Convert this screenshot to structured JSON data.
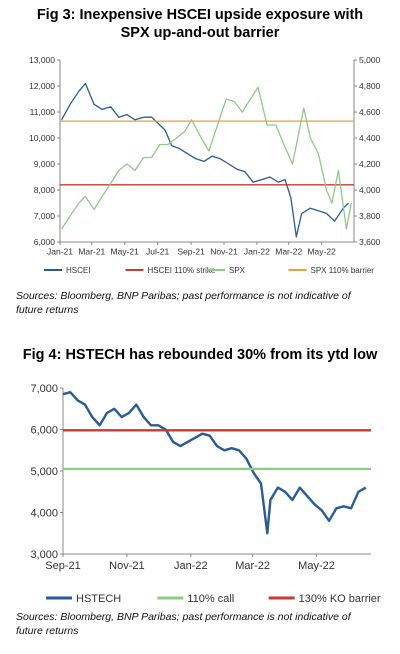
{
  "figures": [
    {
      "title_line1": "Fig 3: Inexpensive HSCEI upside exposure with",
      "title_line2": "SPX up-and-out barrier",
      "source_line1": "Sources: Bloomberg, BNP Paribas; past performance is not indicative of",
      "source_line2": "future returns"
    },
    {
      "title_line1": "Fig 4: HSTECH has rebounded 30% from its ytd low",
      "source_line1": "Sources: Bloomberg, BNP Paribas; past performance is not indicative of",
      "source_line2": "future returns"
    }
  ],
  "chart_data": [
    {
      "type": "line",
      "title": "Fig 3: Inexpensive HSCEI upside exposure with SPX up-and-out barrier",
      "x_axis": {
        "type": "date",
        "range": [
          "2021-01-01",
          "2022-06-30"
        ],
        "tick_labels": [
          "Jan-21",
          "Mar-21",
          "May-21",
          "Jul-21",
          "Sep-21",
          "Nov-21",
          "Jan-22",
          "Mar-22",
          "May-22"
        ],
        "tick_dates": [
          "2021-01-01",
          "2021-03-01",
          "2021-05-01",
          "2021-07-01",
          "2021-09-01",
          "2021-11-01",
          "2022-01-01",
          "2022-03-01",
          "2022-05-01"
        ]
      },
      "y_left": {
        "range": [
          6000,
          13000
        ],
        "ticks": [
          "6,000",
          "7,000",
          "8,000",
          "9,000",
          "10,000",
          "11,000",
          "12,000",
          "13,000"
        ],
        "tick_values": [
          6000,
          7000,
          8000,
          9000,
          10000,
          11000,
          12000,
          13000
        ]
      },
      "y_right": {
        "range": [
          3600,
          5000
        ],
        "ticks": [
          "3,600",
          "3,800",
          "4,000",
          "4,200",
          "4,400",
          "4,600",
          "4,800",
          "5,000"
        ],
        "tick_values": [
          3600,
          3800,
          4000,
          4200,
          4400,
          4600,
          4800,
          5000
        ]
      },
      "grid": false,
      "legend_position": "bottom",
      "series": [
        {
          "name": "HSCEI",
          "axis": "left",
          "color": "#2a5b97",
          "x": [
            "2021-01-04",
            "2021-01-20",
            "2021-02-05",
            "2021-02-17",
            "2021-03-05",
            "2021-03-20",
            "2021-04-05",
            "2021-04-20",
            "2021-05-05",
            "2021-05-20",
            "2021-06-05",
            "2021-06-20",
            "2021-07-05",
            "2021-07-15",
            "2021-07-27",
            "2021-08-10",
            "2021-08-25",
            "2021-09-10",
            "2021-09-25",
            "2021-10-10",
            "2021-10-25",
            "2021-11-10",
            "2021-11-25",
            "2021-12-10",
            "2021-12-25",
            "2022-01-10",
            "2022-01-25",
            "2022-02-10",
            "2022-02-22",
            "2022-03-05",
            "2022-03-15",
            "2022-03-25",
            "2022-04-10",
            "2022-04-25",
            "2022-05-10",
            "2022-05-25",
            "2022-06-10",
            "2022-06-20"
          ],
          "y": [
            10700,
            11300,
            11800,
            12100,
            11300,
            11100,
            11200,
            10800,
            10900,
            10700,
            10800,
            10800,
            10500,
            10300,
            9700,
            9600,
            9400,
            9200,
            9100,
            9300,
            9200,
            9000,
            8800,
            8700,
            8300,
            8400,
            8500,
            8300,
            8400,
            7700,
            6200,
            7100,
            7300,
            7200,
            7100,
            6800,
            7300,
            7500
          ]
        },
        {
          "name": "HSCEI 110% strike",
          "axis": "left",
          "color": "#c63b32",
          "x": [
            "2021-01-01",
            "2022-06-30"
          ],
          "y": [
            8200,
            8200
          ]
        },
        {
          "name": "SPX",
          "axis": "right",
          "color": "#8fca87",
          "x": [
            "2021-01-04",
            "2021-01-20",
            "2021-02-05",
            "2021-02-17",
            "2021-03-05",
            "2021-03-20",
            "2021-04-05",
            "2021-04-20",
            "2021-05-05",
            "2021-05-20",
            "2021-06-05",
            "2021-06-20",
            "2021-07-05",
            "2021-07-20",
            "2021-08-05",
            "2021-08-20",
            "2021-09-02",
            "2021-09-20",
            "2021-10-04",
            "2021-10-20",
            "2021-11-05",
            "2021-11-20",
            "2021-12-05",
            "2021-12-20",
            "2022-01-03",
            "2022-01-20",
            "2022-02-05",
            "2022-02-20",
            "2022-03-08",
            "2022-03-29",
            "2022-04-10",
            "2022-04-25",
            "2022-05-10",
            "2022-05-20",
            "2022-06-01",
            "2022-06-16",
            "2022-06-25"
          ],
          "y": [
            3700,
            3800,
            3900,
            3950,
            3850,
            3950,
            4050,
            4150,
            4200,
            4150,
            4250,
            4250,
            4350,
            4350,
            4400,
            4450,
            4540,
            4400,
            4300,
            4500,
            4700,
            4680,
            4600,
            4700,
            4790,
            4500,
            4500,
            4350,
            4200,
            4630,
            4400,
            4280,
            4000,
            3900,
            4150,
            3700,
            3900
          ]
        },
        {
          "name": "SPX 110% barrier",
          "axis": "right",
          "color": "#e3a33b",
          "x": [
            "2021-01-01",
            "2022-06-30"
          ],
          "y": [
            4530,
            4530
          ]
        }
      ]
    },
    {
      "type": "line",
      "title": "Fig 4: HSTECH has rebounded 30% from its ytd low",
      "x_axis": {
        "type": "date",
        "range": [
          "2021-09-01",
          "2022-06-22"
        ],
        "tick_labels": [
          "Sep-21",
          "Nov-21",
          "Jan-22",
          "Mar-22",
          "May-22"
        ],
        "tick_dates": [
          "2021-09-01",
          "2021-11-01",
          "2022-01-01",
          "2022-03-01",
          "2022-05-01"
        ]
      },
      "y": {
        "range": [
          3000,
          7000
        ],
        "ticks": [
          "3,000",
          "4,000",
          "5,000",
          "6,000",
          "7,000"
        ],
        "tick_values": [
          3000,
          4000,
          5000,
          6000,
          7000
        ]
      },
      "grid": false,
      "legend_position": "bottom",
      "series": [
        {
          "name": "HSTECH",
          "color": "#2a5b97",
          "x": [
            "2021-09-01",
            "2021-09-08",
            "2021-09-15",
            "2021-09-22",
            "2021-09-29",
            "2021-10-06",
            "2021-10-13",
            "2021-10-20",
            "2021-10-27",
            "2021-11-03",
            "2021-11-10",
            "2021-11-17",
            "2021-11-24",
            "2021-12-01",
            "2021-12-08",
            "2021-12-15",
            "2021-12-22",
            "2021-12-29",
            "2022-01-05",
            "2022-01-12",
            "2022-01-19",
            "2022-01-26",
            "2022-02-02",
            "2022-02-09",
            "2022-02-16",
            "2022-02-23",
            "2022-03-02",
            "2022-03-09",
            "2022-03-15",
            "2022-03-18",
            "2022-03-25",
            "2022-04-01",
            "2022-04-08",
            "2022-04-15",
            "2022-04-22",
            "2022-04-29",
            "2022-05-06",
            "2022-05-13",
            "2022-05-20",
            "2022-05-27",
            "2022-06-03",
            "2022-06-10",
            "2022-06-17"
          ],
          "y": [
            6850,
            6900,
            6700,
            6600,
            6300,
            6100,
            6400,
            6500,
            6300,
            6400,
            6600,
            6300,
            6100,
            6100,
            6000,
            5700,
            5600,
            5700,
            5800,
            5900,
            5850,
            5600,
            5500,
            5550,
            5500,
            5300,
            4950,
            4700,
            3500,
            4300,
            4600,
            4500,
            4300,
            4600,
            4400,
            4200,
            4050,
            3800,
            4100,
            4150,
            4100,
            4500,
            4600
          ]
        },
        {
          "name": "110% call",
          "color": "#8fca87",
          "x": [
            "2021-09-01",
            "2022-06-22"
          ],
          "y": [
            5050,
            5050
          ]
        },
        {
          "name": "130% KO barrier",
          "color": "#c63b32",
          "x": [
            "2021-09-01",
            "2022-06-22"
          ],
          "y": [
            5980,
            5980
          ]
        }
      ]
    }
  ]
}
